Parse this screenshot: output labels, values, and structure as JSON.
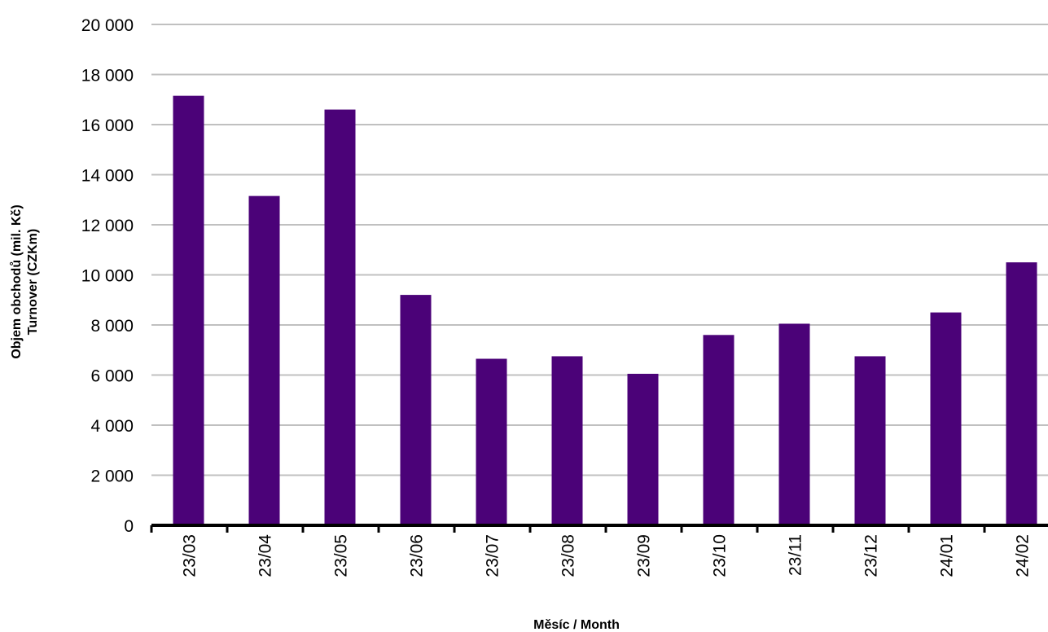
{
  "chart_data": {
    "type": "bar",
    "categories": [
      "23/03",
      "23/04",
      "23/05",
      "23/06",
      "23/07",
      "23/08",
      "23/09",
      "23/10",
      "23/11",
      "23/12",
      "24/01",
      "24/02"
    ],
    "values": [
      17150,
      13150,
      16600,
      9200,
      6650,
      6750,
      6050,
      7600,
      8050,
      6750,
      8500,
      10500
    ],
    "ylim": [
      0,
      20000
    ],
    "yticks": [
      0,
      2000,
      4000,
      6000,
      8000,
      10000,
      12000,
      14000,
      16000,
      18000,
      20000
    ],
    "ytick_labels": [
      "0",
      "2 000",
      "4 000",
      "6 000",
      "8 000",
      "10 000",
      "12 000",
      "14 000",
      "16 000",
      "18 000",
      "20 000"
    ],
    "xlabel": "Měsíc / Month",
    "ylabel_line1": "Objem obchodů (mil. Kč)",
    "ylabel_line2": "Turnover (CZKm)",
    "bar_color": "#4b0278",
    "grid": true,
    "legend": false
  }
}
